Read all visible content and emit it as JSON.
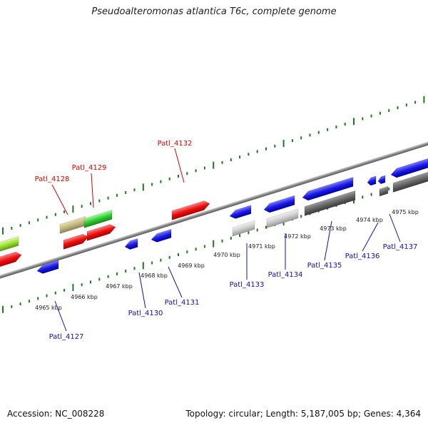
{
  "title": "Pseudoalteromonas atlantica T6c, complete genome",
  "accession": "Accession: NC_008228",
  "topology": "Topology: circular; Length: 5,187,005 bp; Genes: 4,364",
  "colors": {
    "forward_red": "#ee1111",
    "reverse_blue": "#1a1ae6",
    "green": "#33cc33",
    "khaki": "#c4b87a",
    "lime": "#99e033",
    "grey_light": "#cccccc",
    "grey_dark": "#666666",
    "tick_green": "#1e7a1e",
    "label_red": "#dd0000",
    "label_blue": "#1111aa"
  },
  "ruler_ticks": [
    "4965 kbp",
    "4966 kbp",
    "4967 kbp",
    "4968 kbp",
    "4969 kbp",
    "4970 kbp",
    "4971 kbp",
    "4972 kbp",
    "4973 kbp",
    "4974 kbp",
    "4975 kbp"
  ],
  "gene_labels_top": [
    "Patl_4128",
    "Patl_4129",
    "Patl_4132"
  ],
  "gene_labels_bottom": [
    "Patl_4127",
    "Patl_4130",
    "Patl_4131",
    "Patl_4133",
    "Patl_4134",
    "Patl_4135",
    "Patl_4136",
    "Patl_4137"
  ]
}
